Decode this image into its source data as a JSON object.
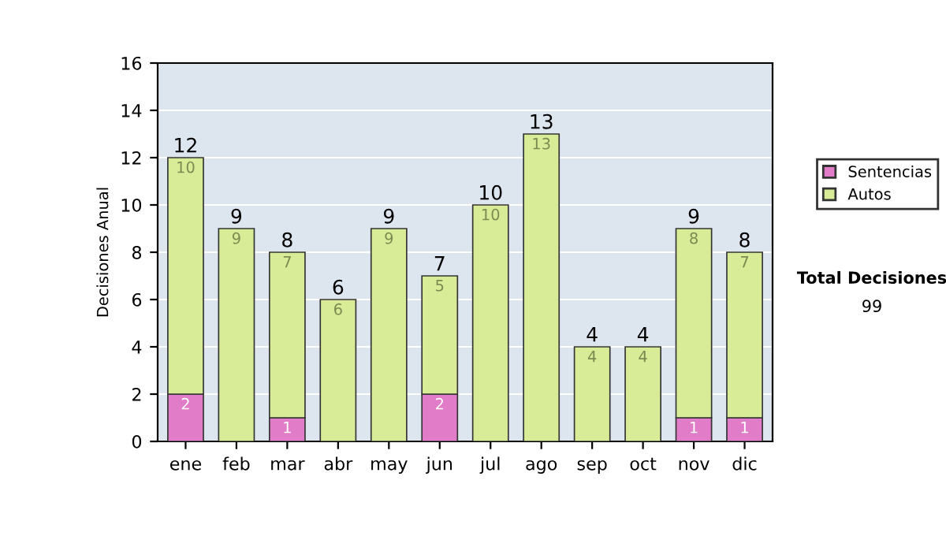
{
  "chart_data": {
    "type": "bar",
    "stacked": true,
    "ylabel": "Decisiones Anual",
    "categories": [
      "ene",
      "feb",
      "mar",
      "abr",
      "may",
      "jun",
      "jul",
      "ago",
      "sep",
      "oct",
      "nov",
      "dic"
    ],
    "series": [
      {
        "name": "Sentencias",
        "color": "#e07cc8",
        "values": [
          2,
          0,
          1,
          0,
          0,
          2,
          0,
          0,
          0,
          0,
          1,
          1
        ],
        "value_labels": [
          "2",
          null,
          "1",
          null,
          null,
          "2",
          null,
          null,
          null,
          null,
          "1",
          "1"
        ]
      },
      {
        "name": "Autos",
        "color": "#d8ec98",
        "values": [
          10,
          9,
          7,
          6,
          9,
          5,
          10,
          13,
          4,
          4,
          8,
          7
        ],
        "value_labels": [
          "10",
          "9",
          "7",
          "6",
          "9",
          "5",
          "10",
          "13",
          "4",
          "4",
          "8",
          "7"
        ]
      }
    ],
    "totals": [
      "12",
      "9",
      "8",
      "6",
      "9",
      "7",
      "10",
      "13",
      "4",
      "4",
      "9",
      "8"
    ],
    "ylim": [
      0,
      16
    ],
    "yticks": [
      0,
      2,
      4,
      6,
      8,
      10,
      12,
      14,
      16
    ],
    "grid": "y",
    "legend": "right",
    "annotations": [
      "Total Decisiones",
      "99"
    ]
  }
}
